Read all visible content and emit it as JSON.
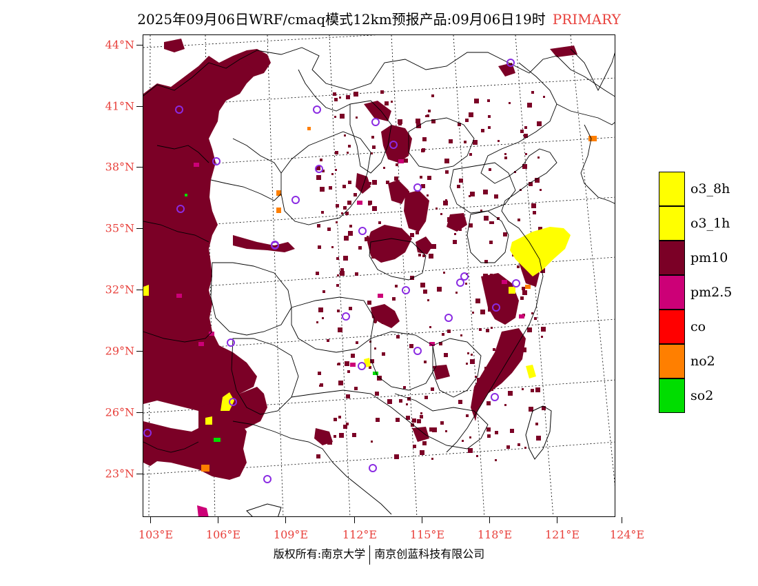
{
  "title": {
    "text": "2025年09月06日WRF/cmaq模式12km预报产品:09月06日19时",
    "tag": "PRIMARY",
    "tag_color": "#e8413c"
  },
  "axes": {
    "lat_labels": [
      "44°N",
      "41°N",
      "38°N",
      "35°N",
      "32°N",
      "29°N",
      "26°N",
      "23°N"
    ],
    "lon_labels": [
      "103°E",
      "106°E",
      "109°E",
      "112°E",
      "115°E",
      "118°E",
      "121°E",
      "124°E"
    ],
    "label_color": "#e8413c"
  },
  "legend": [
    {
      "label": "o3_8h",
      "color": "#ffff00"
    },
    {
      "label": "o3_1h",
      "color": "#ffff00"
    },
    {
      "label": "pm10",
      "color": "#7b0026"
    },
    {
      "label": "pm2.5",
      "color": "#cc0077"
    },
    {
      "label": "co",
      "color": "#ff0000"
    },
    {
      "label": "no2",
      "color": "#ff7f00"
    },
    {
      "label": "so2",
      "color": "#00dd00"
    }
  ],
  "map": {
    "primary_colors": {
      "pm10": "#7b0026",
      "pm25": "#cc0077",
      "o3": "#ffff00",
      "no2": "#ff7f00",
      "so2": "#00dd00"
    },
    "station_marker_color": "#8a2be2"
  },
  "copyright": {
    "left": "版权所有:南京大学",
    "right": "南京创蓝科技有限公司"
  }
}
